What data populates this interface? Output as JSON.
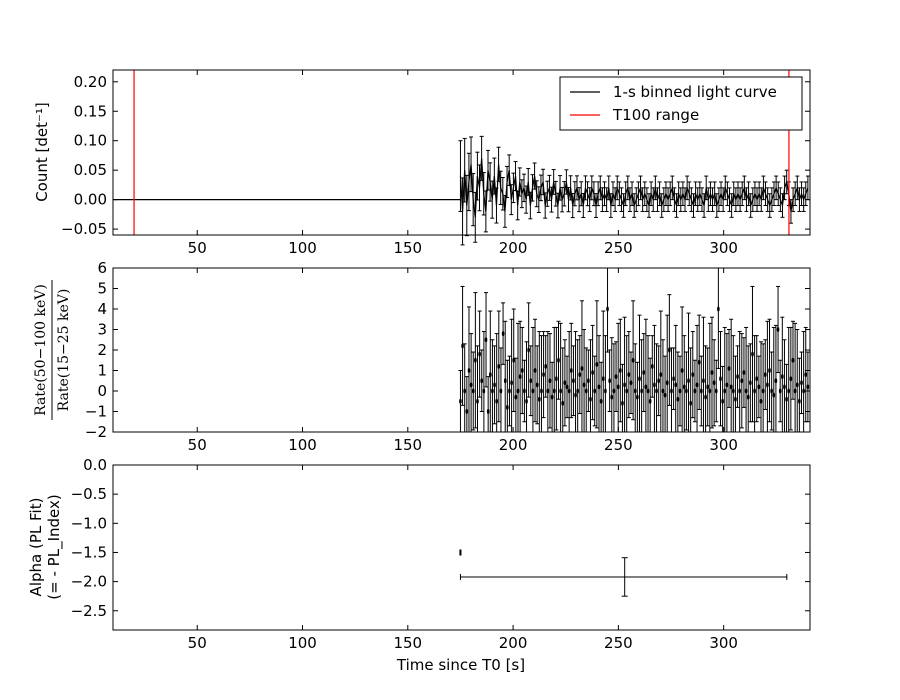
{
  "chart_data": [
    {
      "type": "line",
      "panel": "top",
      "ylabel": "Count [det⁻¹]",
      "xlim": [
        10,
        341
      ],
      "ylim": [
        -0.06,
        0.22
      ],
      "xticks": [
        50,
        100,
        150,
        200,
        250,
        300
      ],
      "xtick_labels": [
        "50",
        "100",
        "150",
        "200",
        "250",
        "300"
      ],
      "yticks": [
        -0.05,
        0.0,
        0.05,
        0.1,
        0.15,
        0.2
      ],
      "ytick_labels": [
        "−0.05",
        "0.00",
        "0.05",
        "0.10",
        "0.15",
        "0.20"
      ],
      "legend": {
        "placement": "top-right",
        "entries": [
          {
            "label": "1-s binned light curve",
            "color": "#000000"
          },
          {
            "label": "T100 range",
            "color": "#ff0000"
          }
        ]
      },
      "series": [
        {
          "name": "1-s binned light curve",
          "color": "#000000",
          "flat_segment": {
            "x": [
              10,
              175
            ],
            "y": 0.0
          },
          "x_start": 175,
          "x_end": 340,
          "y": [
            0.04,
            -0.02,
            0.05,
            -0.01,
            0.03,
            0.06,
            0.0,
            -0.03,
            0.04,
            0.02,
            0.07,
            0.01,
            -0.02,
            0.05,
            0.03,
            0.0,
            0.04,
            -0.01,
            0.06,
            0.02,
            0.01,
            -0.02,
            0.03,
            0.05,
            0.0,
            0.02,
            0.04,
            -0.01,
            0.03,
            0.01,
            0.02,
            0.0,
            0.03,
            -0.01,
            0.02,
            0.04,
            0.01,
            0.0,
            0.02,
            0.03,
            -0.01,
            0.01,
            0.02,
            0.0,
            0.03,
            0.01,
            -0.01,
            0.02,
            0.0,
            0.01,
            0.03,
            0.0,
            0.02,
            -0.01,
            0.01,
            0.02,
            0.0,
            0.01,
            -0.01,
            0.02,
            0.01,
            0.0,
            0.02,
            0.01,
            -0.01,
            0.01,
            0.02,
            0.0,
            0.01,
            0.0,
            0.02,
            -0.01,
            0.01,
            0.0,
            0.02,
            0.01,
            0.0,
            -0.01,
            0.01,
            0.02,
            0.0,
            0.01,
            -0.01,
            0.0,
            0.01,
            0.02,
            0.0,
            0.01,
            0.0,
            -0.01,
            0.01,
            0.0,
            0.02,
            0.0,
            0.01,
            -0.01,
            0.0,
            0.01,
            0.0,
            0.01,
            0.02,
            0.0,
            -0.01,
            0.01,
            0.0,
            0.01,
            0.0,
            0.02,
            0.01,
            0.0,
            -0.01,
            0.01,
            0.0,
            0.01,
            0.0,
            -0.01,
            0.02,
            0.0,
            0.01,
            0.0,
            0.01,
            -0.01,
            0.0,
            0.01,
            0.0,
            0.02,
            0.01,
            0.0,
            -0.01,
            0.01,
            0.0,
            0.01,
            0.0,
            0.01,
            0.02,
            0.0,
            0.01,
            -0.01,
            0.0,
            0.01,
            0.0,
            0.01,
            0.0,
            0.02,
            0.01,
            0.0,
            -0.01,
            0.0,
            0.01,
            0.02,
            0.01,
            0.0,
            -0.01,
            0.02,
            0.03,
            0.01,
            -0.02,
            0.0,
            0.01,
            0.02,
            0.0,
            0.01,
            0.0,
            0.01,
            0.02
          ],
          "yerr_near": 0.06,
          "yerr_far": 0.02
        },
        {
          "name": "T100 range",
          "color": "#ff0000",
          "vlines_x": [
            20,
            331
          ]
        }
      ]
    },
    {
      "type": "scatter",
      "panel": "middle",
      "ylabel": "Rate(50−100 keV) / Rate(15−25 keV)",
      "ylabel_numerator": "Rate(50−100 keV)",
      "ylabel_denominator": "Rate(15−25 keV)",
      "xlim": [
        10,
        341
      ],
      "ylim": [
        -2,
        6
      ],
      "xticks": [
        50,
        100,
        150,
        200,
        250,
        300
      ],
      "xtick_labels": [
        "50",
        "100",
        "150",
        "200",
        "250",
        "300"
      ],
      "yticks": [
        -2,
        -1,
        0,
        1,
        2,
        3,
        4,
        5,
        6
      ],
      "ytick_labels": [
        "−2",
        "−1",
        "0",
        "1",
        "2",
        "3",
        "4",
        "5",
        "6"
      ],
      "x_start": 175,
      "x_end": 340,
      "y": [
        -0.5,
        2.2,
        0.0,
        -1.0,
        1.0,
        0.3,
        0.0,
        1.5,
        -0.5,
        1.8,
        0.5,
        0.0,
        2.5,
        -1.0,
        0.8,
        0.0,
        0.3,
        -0.5,
        1.2,
        0.0,
        2.8,
        0.5,
        -0.8,
        0.0,
        0.4,
        1.5,
        -0.3,
        0.0,
        0.7,
        1.0,
        0.0,
        -0.5,
        2.0,
        0.5,
        0.0,
        1.0,
        0.3,
        -0.4,
        0.0,
        0.8,
        1.2,
        0.0,
        0.5,
        -0.3,
        0.0,
        0.6,
        1.5,
        0.0,
        -0.6,
        0.4,
        0.2,
        0.0,
        1.0,
        0.5,
        -0.2,
        0.0,
        0.8,
        1.1,
        0.3,
        0.0,
        0.5,
        -0.4,
        0.9,
        0.0,
        1.3,
        0.2,
        -0.5,
        0.6,
        0.0,
        4.0,
        0.5,
        -0.3,
        0.0,
        0.7,
        0.2,
        1.0,
        -0.6,
        0.3,
        0.0,
        0.8,
        0.4,
        1.5,
        0.0,
        -0.3,
        0.6,
        0.0,
        0.9,
        0.2,
        0.0,
        -0.5,
        1.2,
        0.3,
        0.0,
        0.5,
        0.8,
        0.0,
        -0.2,
        0.4,
        2.0,
        0.0,
        0.6,
        0.3,
        -0.4,
        0.0,
        1.0,
        0.2,
        0.0,
        0.5,
        -0.6,
        0.8,
        0.0,
        0.3,
        1.4,
        0.0,
        0.5,
        -0.3,
        0.2,
        0.0,
        0.9,
        0.4,
        0.0,
        4.0,
        0.6,
        -0.5,
        0.0,
        0.3,
        1.1,
        0.2,
        0.0,
        -0.4,
        0.7,
        0.0,
        0.5,
        0.9,
        0.0,
        -0.3,
        0.4,
        1.8,
        0.0,
        0.6,
        0.2,
        -0.5,
        0.0,
        0.8,
        0.3,
        1.0,
        0.0,
        -0.2,
        0.5,
        3.0,
        0.0,
        0.7,
        0.2,
        -0.4,
        0.0,
        0.6,
        1.5,
        0.0,
        0.3,
        -0.5,
        0.4,
        0.0,
        0.8,
        0.2
      ],
      "yerr": 2.5
    },
    {
      "type": "scatter",
      "panel": "bottom",
      "ylabel": "Alpha (PL Fit)",
      "ylabel_line2": "(= - PL_Index)",
      "xlabel": "Time since T0 [s]",
      "xlim": [
        10,
        341
      ],
      "ylim": [
        -2.83,
        0.0
      ],
      "xticks": [
        50,
        100,
        150,
        200,
        250,
        300
      ],
      "xtick_labels": [
        "50",
        "100",
        "150",
        "200",
        "250",
        "300"
      ],
      "yticks": [
        0.0,
        -0.5,
        -1.0,
        -1.5,
        -2.0,
        -2.5
      ],
      "ytick_labels": [
        "0.0",
        "−0.5",
        "−1.0",
        "−1.5",
        "−2.0",
        "−2.5"
      ],
      "points": [
        {
          "x": 175,
          "y": -1.5,
          "xerr": [
            0,
            0
          ],
          "yerr": 0.05
        },
        {
          "x": 253,
          "y": -1.92,
          "xerr": [
            78,
            77
          ],
          "yerr": 0.33
        }
      ]
    }
  ]
}
